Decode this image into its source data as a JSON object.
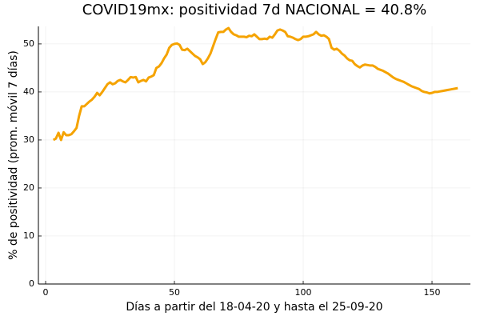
{
  "chart_data": {
    "type": "line",
    "title": "COVID19mx: positividad 7d NACIONAL = 40.8%",
    "xlabel": "Días a partir del 18-04-20 y hasta el 25-09-20",
    "ylabel": "% de positividad (prom. móvil 7 días)",
    "xlim": [
      -2.8,
      164.9
    ],
    "ylim": [
      0,
      53.65
    ],
    "xticks": [
      0,
      50,
      100,
      150
    ],
    "yticks": [
      0,
      10,
      20,
      30,
      40,
      50
    ],
    "grid": true,
    "x": [
      3,
      4,
      5,
      6,
      7,
      8,
      9,
      10,
      11,
      12,
      13,
      14,
      15,
      16,
      17,
      18,
      19,
      20,
      21,
      22,
      23,
      24,
      25,
      26,
      27,
      28,
      29,
      30,
      31,
      32,
      33,
      34,
      35,
      36,
      37,
      38,
      39,
      40,
      41,
      42,
      43,
      44,
      45,
      46,
      47,
      48,
      49,
      50,
      51,
      52,
      53,
      54,
      55,
      56,
      57,
      58,
      59,
      60,
      61,
      62,
      63,
      64,
      65,
      66,
      67,
      68,
      69,
      70,
      71,
      72,
      73,
      74,
      75,
      76,
      77,
      78,
      79,
      80,
      81,
      82,
      83,
      84,
      85,
      86,
      87,
      88,
      89,
      90,
      91,
      92,
      93,
      94,
      95,
      96,
      97,
      98,
      99,
      100,
      101,
      102,
      103,
      104,
      105,
      106,
      107,
      108,
      109,
      110,
      111,
      112,
      113,
      114,
      115,
      116,
      117,
      118,
      119,
      120,
      121,
      122,
      123,
      124,
      125,
      126,
      127,
      128,
      129,
      130,
      131,
      132,
      133,
      134,
      135,
      136,
      137,
      138,
      139,
      140,
      141,
      142,
      143,
      144,
      145,
      146,
      147,
      148,
      149,
      150,
      151,
      152,
      153,
      154,
      155,
      156,
      157,
      158,
      159,
      160
    ],
    "series": [
      {
        "name": "positividad",
        "color": "#f5a300",
        "values": [
          30,
          30.3,
          31.5,
          30,
          31.6,
          31,
          31,
          31.2,
          31.8,
          32.5,
          35,
          37,
          37,
          37.5,
          38,
          38.4,
          39,
          39.8,
          39.3,
          40,
          40.8,
          41.6,
          42,
          41.6,
          41.8,
          42.3,
          42.5,
          42.2,
          42,
          42.5,
          43.1,
          43,
          43.1,
          42,
          42.3,
          42.5,
          42.2,
          43,
          43.2,
          43.5,
          45,
          45.3,
          46,
          47,
          47.8,
          49.2,
          49.8,
          50,
          50.1,
          49.8,
          48.8,
          48.7,
          49,
          48.5,
          48,
          47.5,
          47.2,
          46.8,
          45.8,
          46.2,
          47,
          48,
          49.5,
          51,
          52.4,
          52.5,
          52.5,
          53,
          53.3,
          52.5,
          52,
          51.8,
          51.5,
          51.5,
          51.5,
          51.4,
          51.7,
          51.6,
          52,
          51.5,
          51,
          51,
          51.1,
          51,
          51.5,
          51.3,
          52,
          52.8,
          53,
          52.8,
          52.5,
          51.6,
          51.5,
          51.3,
          51,
          50.8,
          51,
          51.5,
          51.5,
          51.6,
          51.8,
          52,
          52.5,
          52,
          51.7,
          51.8,
          51.5,
          51,
          49.2,
          48.8,
          49,
          48.6,
          48,
          47.6,
          47,
          46.6,
          46.5,
          45.8,
          45.4,
          45.1,
          45.5,
          45.7,
          45.6,
          45.5,
          45.5,
          45.2,
          44.8,
          44.6,
          44.4,
          44.1,
          43.8,
          43.4,
          43,
          42.7,
          42.5,
          42.3,
          42.1,
          41.8,
          41.5,
          41.2,
          41,
          40.8,
          40.6,
          40.2,
          40,
          39.9,
          39.7,
          39.8,
          40,
          40,
          40.1,
          40.2,
          40.3,
          40.4,
          40.5,
          40.6,
          40.7,
          40.8
        ]
      }
    ]
  }
}
